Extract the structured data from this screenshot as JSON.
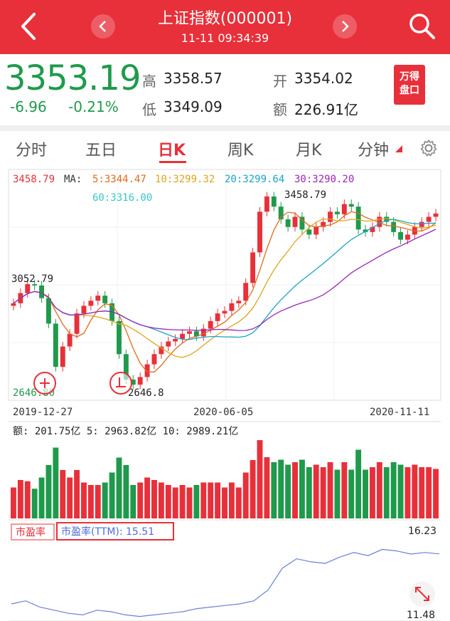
{
  "header": {
    "title": "上证指数(000001)",
    "time": "11-11 09:34:39",
    "icons": [
      "back-icon",
      "prev-icon",
      "next-icon",
      "search-icon"
    ]
  },
  "quote": {
    "price": "3353.19",
    "change": "-6.96",
    "change_pct": "-0.21%",
    "high_label": "高",
    "high": "3358.57",
    "low_label": "低",
    "low": "3349.09",
    "open_label": "开",
    "open": "3354.02",
    "amount_label": "额",
    "amount": "226.91亿",
    "badge_line1": "万得",
    "badge_line2": "盘口",
    "down_color": "#1f9a4c",
    "up_color": "#e8303a"
  },
  "tabs": [
    {
      "label": "分时"
    },
    {
      "label": "五日"
    },
    {
      "label": "日K",
      "active": true
    },
    {
      "label": "周K"
    },
    {
      "label": "月K"
    },
    {
      "label": "分钟"
    }
  ],
  "ma_legend": {
    "high_label": "3458.79",
    "ma_title": "MA:",
    "ma5": "5:3344.47",
    "ma10": "10:3299.32",
    "ma20": "20:3299.64",
    "ma30": "30:3290.20",
    "ma60": "60:3316.00",
    "colors": {
      "ma5": "#e06a1b",
      "ma10": "#e0a51b",
      "ma20": "#1aa3c9",
      "ma30": "#9b26b6",
      "ma60": "#38c8c8"
    }
  },
  "price_axis": {
    "top": "3458.79",
    "bottom": "2646.80"
  },
  "annotations": {
    "peak": "3458.79",
    "left": "3052.79",
    "low": "2646.8"
  },
  "dates": [
    "2019-12-27",
    "2020-06-05",
    "2020-11-11"
  ],
  "volume_legend": "额: 201.75亿  5: 2963.82亿  10: 2989.21亿",
  "pe": {
    "tab_label": "市盈率",
    "value_label": "市盈率(TTM): 15.51",
    "max": "16.23",
    "min": "11.48"
  },
  "chart_data": {
    "type": "line",
    "title": "",
    "date_range": [
      "2019-12-27",
      "2020-11-11"
    ],
    "price_close": [
      3000,
      3040,
      3075,
      3070,
      3020,
      2920,
      2750,
      2830,
      2880,
      2960,
      2990,
      3010,
      3030,
      3000,
      2930,
      2800,
      2700,
      2680,
      2710,
      2760,
      2800,
      2830,
      2850,
      2860,
      2880,
      2890,
      2870,
      2900,
      2930,
      2960,
      2970,
      3000,
      3010,
      3080,
      3200,
      3360,
      3420,
      3380,
      3330,
      3300,
      3340,
      3290,
      3270,
      3300,
      3320,
      3360,
      3350,
      3390,
      3380,
      3290,
      3280,
      3300,
      3340,
      3320,
      3280,
      3250,
      3270,
      3300,
      3320,
      3340,
      3353
    ],
    "ylim": [
      2646.8,
      3458.79
    ],
    "pe_ttm": [
      12.3,
      12.5,
      12.1,
      11.9,
      11.7,
      11.6,
      11.9,
      11.8,
      11.6,
      11.5,
      11.6,
      11.7,
      11.8,
      12.0,
      12.1,
      12.2,
      12.3,
      12.5,
      13.2,
      14.6,
      15.2,
      15.0,
      14.9,
      15.3,
      15.6,
      15.4,
      15.8,
      15.7,
      15.5,
      15.6,
      15.51
    ],
    "pe_ylim": [
      11.48,
      16.23
    ]
  }
}
